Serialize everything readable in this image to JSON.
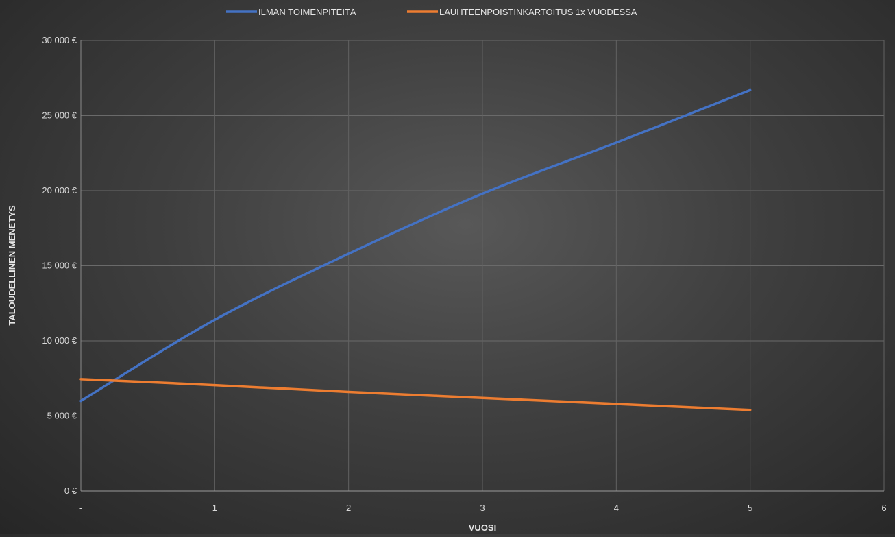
{
  "chart_data": {
    "type": "line",
    "title": "",
    "xlabel": "VUOSI",
    "ylabel": "TALOUDELLINEN MENETYS",
    "xlim": [
      0,
      6
    ],
    "ylim": [
      0,
      30000
    ],
    "x_ticks": [
      {
        "value": 0,
        "label": "-"
      },
      {
        "value": 1,
        "label": "1"
      },
      {
        "value": 2,
        "label": "2"
      },
      {
        "value": 3,
        "label": "3"
      },
      {
        "value": 4,
        "label": "4"
      },
      {
        "value": 5,
        "label": "5"
      },
      {
        "value": 6,
        "label": "6"
      }
    ],
    "y_ticks": [
      {
        "value": 0,
        "label": "0 €"
      },
      {
        "value": 5000,
        "label": "5 000 €"
      },
      {
        "value": 10000,
        "label": "10 000 €"
      },
      {
        "value": 15000,
        "label": "15 000 €"
      },
      {
        "value": 20000,
        "label": "20 000 €"
      },
      {
        "value": 25000,
        "label": "25 000 €"
      },
      {
        "value": 30000,
        "label": "30 000 €"
      }
    ],
    "grid": true,
    "legend_position": "top",
    "series": [
      {
        "name": "ILMAN TOIMENPITEITÄ",
        "color": "#4472c4",
        "x": [
          0,
          1,
          2,
          3,
          4,
          5
        ],
        "values": [
          6000,
          11400,
          15800,
          19800,
          23200,
          26700
        ]
      },
      {
        "name": "LAUHTEENPOISTINKARTOITUS 1x VUODESSA",
        "color": "#ed7d31",
        "x": [
          0,
          1,
          2,
          3,
          4,
          5
        ],
        "values": [
          7450,
          7050,
          6600,
          6200,
          5800,
          5400
        ]
      }
    ]
  }
}
